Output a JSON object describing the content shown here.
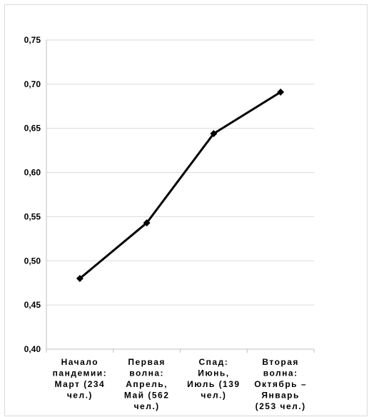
{
  "chart_data": {
    "type": "line",
    "title": "",
    "xlabel": "",
    "ylabel": "",
    "ylim": [
      0.4,
      0.75
    ],
    "ytick_step": 0.05,
    "ytick_labels": [
      "0,40",
      "0,45",
      "0,50",
      "0,55",
      "0,60",
      "0,65",
      "0,70",
      "0,75"
    ],
    "grid": true,
    "legend": "none",
    "line_color": "#000000",
    "grid_color": "#d9d9d9",
    "categories": [
      [
        "Начало",
        "пандемии:",
        "Март (234",
        "чел.)"
      ],
      [
        "Первая",
        "волна:",
        "Апрель,",
        "Май  (562",
        "чел.)"
      ],
      [
        "Спад:",
        "Июнь,",
        "Июль (139",
        "чел.)"
      ],
      [
        "Вторая",
        "волна:",
        "Октябрь –",
        "Январь",
        "(253 чел.)"
      ]
    ],
    "series": [
      {
        "values": [
          0.48,
          0.543,
          0.644,
          0.691
        ]
      }
    ]
  }
}
